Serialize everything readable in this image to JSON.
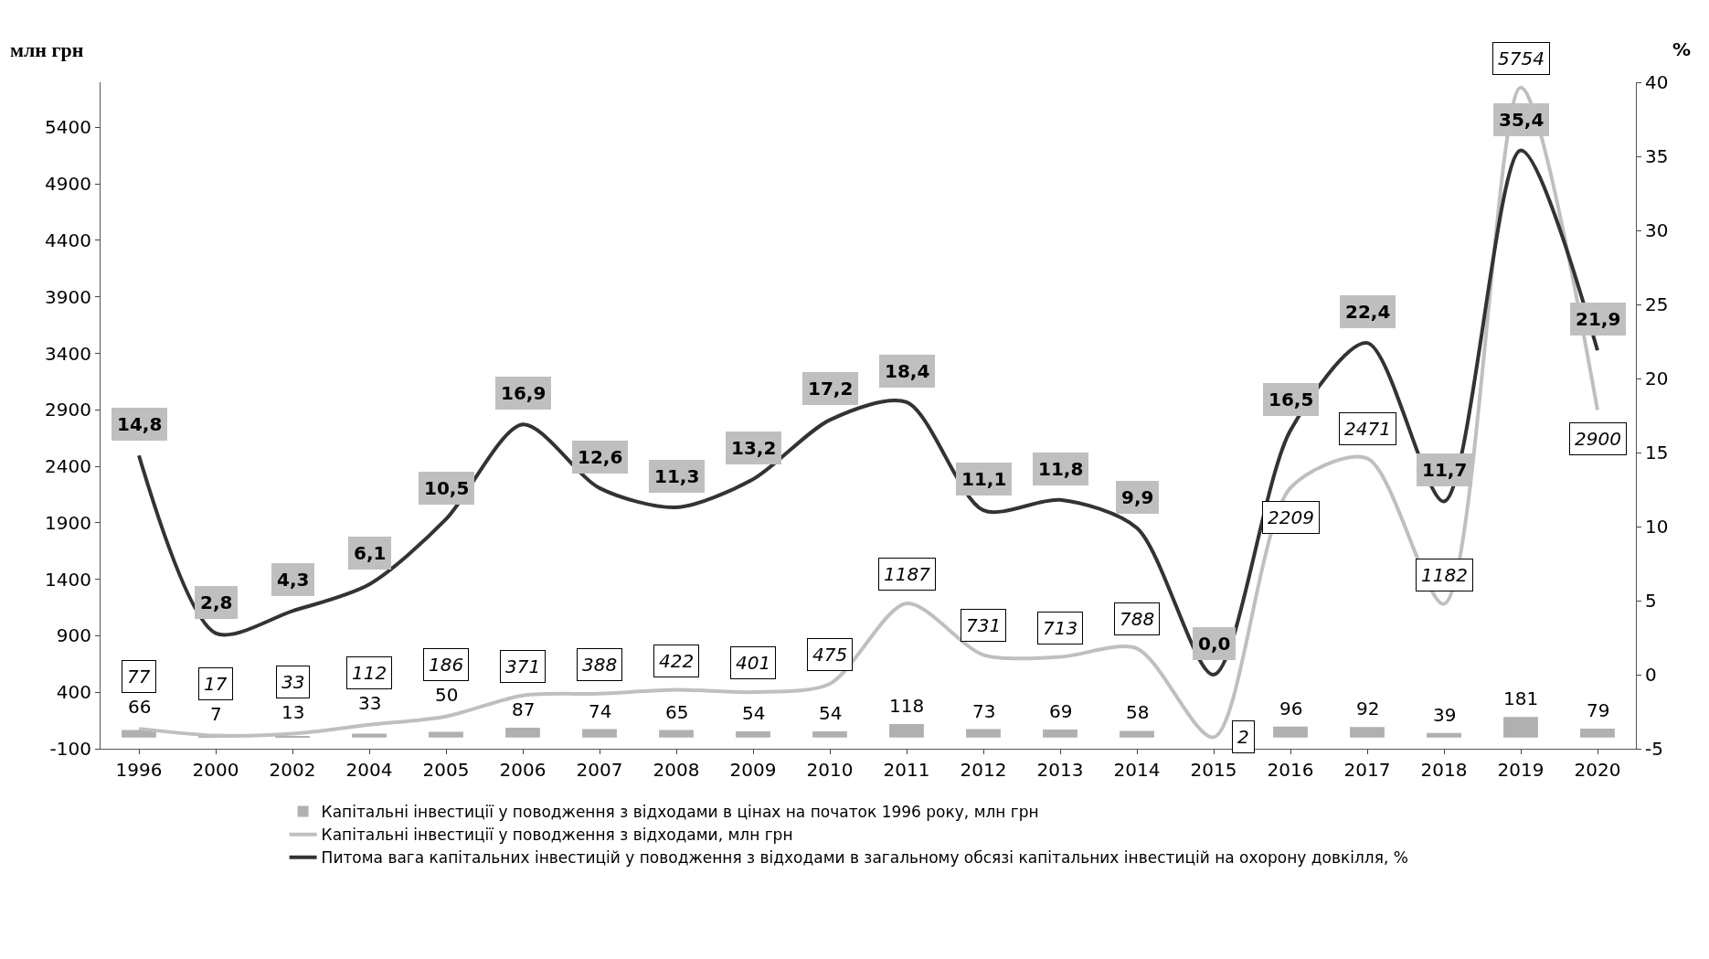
{
  "chart_data": {
    "type": "bar",
    "categories": [
      "1996",
      "2000",
      "2002",
      "2004",
      "2005",
      "2006",
      "2007",
      "2008",
      "2009",
      "2010",
      "2011",
      "2012",
      "2013",
      "2014",
      "2015",
      "2016",
      "2017",
      "2018",
      "2019",
      "2020"
    ],
    "ylabel": "млн грн",
    "y2label": "%",
    "ylim": [
      -100,
      5800
    ],
    "yticks": [
      -100,
      400,
      900,
      1400,
      1900,
      2400,
      2900,
      3400,
      3900,
      4400,
      4900,
      5400
    ],
    "y2lim": [
      -5,
      40
    ],
    "y2ticks": [
      -5,
      0,
      5,
      10,
      15,
      20,
      25,
      30,
      35,
      40
    ],
    "series": [
      {
        "name": "Капітальні інвестиції у поводження з відходами в цінах на початок 1996 року, млн грн",
        "color": "#b0b0b0",
        "values": [
          66,
          7,
          13,
          33,
          50,
          87,
          74,
          65,
          54,
          54,
          118,
          73,
          69,
          58,
          null,
          96,
          92,
          39,
          181,
          79
        ],
        "value_labels": [
          "66",
          "7",
          "13",
          "33",
          "50",
          "87",
          "74",
          "65",
          "54",
          "54",
          "118",
          "73",
          "69",
          "58",
          null,
          "96",
          "92",
          "39",
          "181",
          "79"
        ]
      },
      {
        "name": "Капітальні інвестиції у поводження з відходами, млн грн",
        "type": "line",
        "color": "#bfbfbf",
        "values": [
          77,
          17,
          33,
          112,
          186,
          371,
          388,
          422,
          401,
          475,
          1187,
          731,
          713,
          788,
          2,
          2209,
          2471,
          1182,
          5754,
          2900
        ],
        "value_labels": [
          "77",
          "17",
          "33",
          "112",
          "186",
          "371",
          "388",
          "422",
          "401",
          "475",
          "1187",
          "731",
          "713",
          "788",
          "2",
          "2209",
          "2471",
          "1182",
          "5754",
          "2900"
        ]
      },
      {
        "name": "Питома вага капітальних інвестицій у поводження з відходами в загальному обсязі капітальних інвестицій на охорону довкілля, %",
        "type": "line",
        "axis": "y2",
        "color": "#333333",
        "values": [
          14.8,
          2.8,
          4.3,
          6.1,
          10.5,
          16.9,
          12.6,
          11.3,
          13.2,
          17.2,
          18.4,
          11.1,
          11.8,
          9.9,
          0.0,
          16.5,
          22.4,
          11.7,
          35.4,
          21.9
        ],
        "value_labels": [
          "14,8",
          "2,8",
          "4,3",
          "6,1",
          "10,5",
          "16,9",
          "12,6",
          "11,3",
          "13,2",
          "17,2",
          "18,4",
          "11,1",
          "11,8",
          "9,9",
          "0,0",
          "16,5",
          "22,4",
          "11,7",
          "35,4",
          "21,9"
        ]
      }
    ],
    "legend": "bottom",
    "marker": "none",
    "line_style": "solid"
  }
}
